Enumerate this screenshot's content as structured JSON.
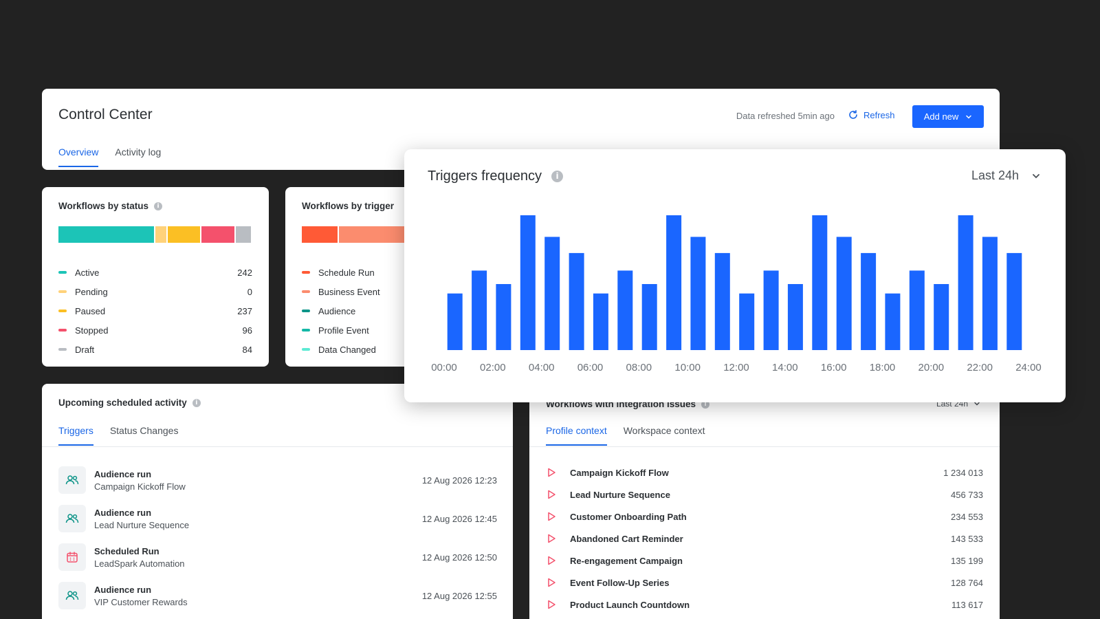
{
  "header": {
    "title": "Control Center",
    "refresh_info": "Data refreshed 5min ago",
    "refresh_label": "Refresh",
    "add_label": "Add new",
    "tabs": [
      "Overview",
      "Activity log"
    ]
  },
  "status_card": {
    "title": "Workflows by status",
    "items": [
      {
        "label": "Active",
        "value": "242",
        "color": "#1cc4b7"
      },
      {
        "label": "Pending",
        "value": "0",
        "color": "#ffd27a"
      },
      {
        "label": "Paused",
        "value": "237",
        "color": "#fbbf24"
      },
      {
        "label": "Stopped",
        "value": "96",
        "color": "#f4516c"
      },
      {
        "label": "Draft",
        "value": "84",
        "color": "#b9bdc2"
      }
    ]
  },
  "trigger_card": {
    "title": "Workflows by trigger",
    "items": [
      {
        "label": "Schedule Run",
        "color": "#ff5a36"
      },
      {
        "label": "Business Event",
        "color": "#fb8c6e"
      },
      {
        "label": "Audience",
        "color": "#0d9488"
      },
      {
        "label": "Profile Event",
        "color": "#14b8a6"
      },
      {
        "label": "Data Changed",
        "color": "#5eead4"
      }
    ]
  },
  "upcoming": {
    "title": "Upcoming scheduled activity",
    "tabs": [
      "Triggers",
      "Status Changes"
    ],
    "rows": [
      {
        "icon": "audience-icon",
        "title": "Audience run",
        "subtitle": "Campaign Kickoff Flow",
        "time": "12 Aug 2026 12:23"
      },
      {
        "icon": "audience-icon",
        "title": "Audience run",
        "subtitle": "Lead Nurture Sequence",
        "time": "12 Aug 2026 12:45"
      },
      {
        "icon": "calendar-icon",
        "title": "Scheduled Run",
        "subtitle": "LeadSpark Automation",
        "time": "12 Aug 2026 12:50"
      },
      {
        "icon": "audience-icon",
        "title": "Audience run",
        "subtitle": "VIP Customer Rewards",
        "time": "12 Aug 2026 12:55"
      }
    ]
  },
  "issues": {
    "title": "Workflows with integration issues",
    "range": "Last 24h",
    "tabs": [
      "Profile context",
      "Workspace context"
    ],
    "rows": [
      {
        "name": "Campaign Kickoff Flow",
        "count": "1 234 013"
      },
      {
        "name": "Lead Nurture Sequence",
        "count": "456 733"
      },
      {
        "name": "Customer Onboarding Path",
        "count": "234 553"
      },
      {
        "name": "Abandoned Cart Reminder",
        "count": "143 533"
      },
      {
        "name": "Re-engagement Campaign",
        "count": "135 199"
      },
      {
        "name": "Event Follow-Up Series",
        "count": "128 764"
      },
      {
        "name": "Product Launch Countdown",
        "count": "113 617"
      }
    ]
  },
  "chart_card": {
    "title": "Triggers frequency",
    "range": "Last 24h"
  },
  "chart_data": {
    "type": "bar",
    "title": "Triggers frequency",
    "xlabel": "",
    "ylabel": "",
    "grid": false,
    "bar_color": "#1a66ff",
    "values": [
      42,
      59,
      49,
      100,
      84,
      72,
      42,
      59,
      49,
      100,
      84,
      72,
      42,
      59,
      49,
      100,
      84,
      72,
      42,
      59,
      49,
      100,
      84,
      72
    ],
    "ylim": [
      0,
      100
    ],
    "x_ticks": [
      "00:00",
      "02:00",
      "04:00",
      "06:00",
      "08:00",
      "10:00",
      "12:00",
      "14:00",
      "16:00",
      "18:00",
      "20:00",
      "22:00",
      "24:00"
    ]
  }
}
